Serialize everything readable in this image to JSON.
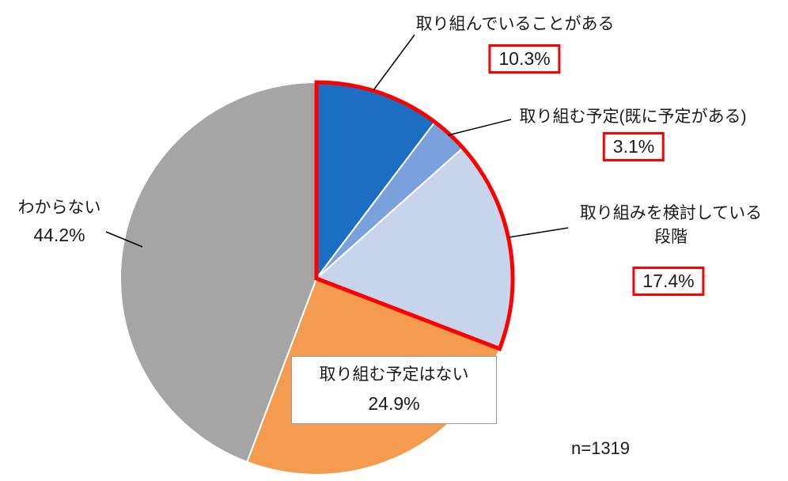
{
  "chart_data": {
    "type": "pie",
    "title": "",
    "n_label": "n=1319",
    "start_angle_deg": 0,
    "direction": "clockwise",
    "legend": "none",
    "highlight_color": "#ff0000",
    "separator_color": "#ffffff",
    "slices": [
      {
        "label": "取り組んでいることがある",
        "pct_label": "10.3%",
        "value": 10.3,
        "color": "#1b6ec2",
        "highlighted": true
      },
      {
        "label": "取り組む予定(既に予定がある)",
        "pct_label": "3.1%",
        "value": 3.1,
        "color": "#7ba1dd",
        "highlighted": true
      },
      {
        "label": "取り組みを検討している段階",
        "label_display": "取り組みを検討している\n段階",
        "pct_label": "17.4%",
        "value": 17.4,
        "color": "#c6d5eb",
        "highlighted": true
      },
      {
        "label": "取り組む予定はない",
        "pct_label": "24.9%",
        "value": 24.9,
        "color": "#f39b4f",
        "highlighted": false
      },
      {
        "label": "わからない",
        "pct_label": "44.2%",
        "value": 44.2,
        "color": "#a5a5a5",
        "highlighted": false
      }
    ]
  }
}
